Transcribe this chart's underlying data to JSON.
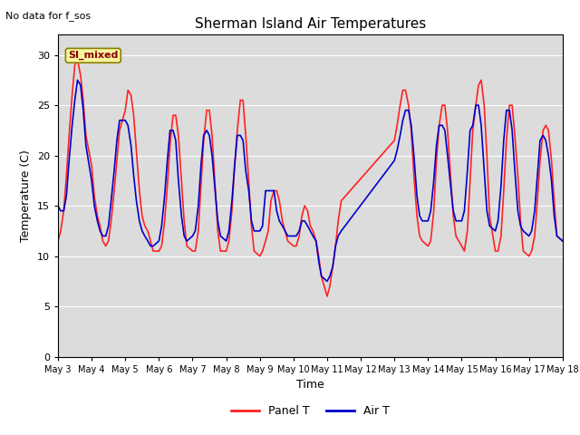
{
  "title": "Sherman Island Air Temperatures",
  "subtitle": "No data for f_sos",
  "xlabel": "Time",
  "ylabel": "Temperature (C)",
  "ylim": [
    0,
    32
  ],
  "yticks": [
    0,
    5,
    10,
    15,
    20,
    25,
    30
  ],
  "annotation": "SI_mixed",
  "bg_color": "#dcdcdc",
  "panel_t_color": "#ff2222",
  "air_t_color": "#0000cc",
  "legend_labels": [
    "Panel T",
    "Air T"
  ],
  "panel_t_x": [
    3.0,
    3.08,
    3.17,
    3.25,
    3.33,
    3.42,
    3.5,
    3.58,
    3.67,
    3.75,
    3.83,
    4.0,
    4.08,
    4.17,
    4.25,
    4.33,
    4.42,
    4.5,
    4.58,
    4.67,
    4.75,
    4.83,
    5.0,
    5.08,
    5.17,
    5.25,
    5.33,
    5.42,
    5.5,
    5.58,
    5.67,
    5.75,
    5.83,
    6.0,
    6.08,
    6.17,
    6.25,
    6.33,
    6.42,
    6.5,
    6.58,
    6.67,
    6.75,
    6.83,
    7.0,
    7.08,
    7.17,
    7.25,
    7.33,
    7.42,
    7.5,
    7.58,
    7.67,
    7.75,
    7.83,
    8.0,
    8.08,
    8.17,
    8.25,
    8.33,
    8.42,
    8.5,
    8.58,
    8.67,
    8.75,
    8.83,
    9.0,
    9.08,
    9.17,
    9.25,
    9.33,
    9.42,
    9.5,
    9.58,
    9.67,
    9.75,
    9.83,
    10.0,
    10.08,
    10.17,
    10.25,
    10.33,
    10.42,
    10.5,
    10.58,
    10.67,
    10.75,
    10.83,
    11.0,
    11.08,
    11.17,
    11.25,
    11.33,
    11.42,
    13.0,
    13.08,
    13.17,
    13.25,
    13.33,
    13.42,
    13.5,
    13.58,
    13.67,
    13.75,
    13.83,
    14.0,
    14.08,
    14.17,
    14.25,
    14.33,
    14.42,
    14.5,
    14.58,
    14.67,
    14.75,
    14.83,
    15.0,
    15.08,
    15.17,
    15.25,
    15.33,
    15.42,
    15.5,
    15.58,
    15.67,
    15.75,
    15.83,
    16.0,
    16.08,
    16.17,
    16.25,
    16.33,
    16.42,
    16.5,
    16.58,
    16.67,
    16.75,
    16.83,
    17.0,
    17.08,
    17.17,
    17.25,
    17.33,
    17.42,
    17.5,
    17.58,
    17.67,
    17.75,
    17.83,
    18.0
  ],
  "panel_t_y": [
    11.5,
    12.5,
    14.5,
    18.0,
    22.0,
    26.0,
    29.0,
    29.5,
    28.0,
    25.5,
    22.0,
    19.0,
    16.0,
    14.0,
    13.0,
    11.5,
    11.0,
    11.5,
    13.5,
    16.5,
    19.5,
    22.5,
    24.5,
    26.5,
    26.0,
    24.0,
    20.5,
    16.5,
    14.0,
    13.0,
    12.5,
    11.5,
    10.5,
    10.5,
    11.0,
    13.5,
    17.0,
    21.0,
    24.0,
    24.0,
    22.0,
    17.5,
    13.5,
    11.0,
    10.5,
    10.5,
    12.5,
    17.0,
    21.5,
    24.5,
    24.5,
    22.0,
    17.0,
    12.5,
    10.5,
    10.5,
    11.5,
    14.5,
    19.0,
    22.5,
    25.5,
    25.5,
    22.0,
    17.5,
    13.0,
    10.5,
    10.0,
    10.5,
    11.5,
    12.5,
    15.5,
    16.5,
    16.5,
    15.5,
    13.5,
    12.5,
    11.5,
    11.0,
    11.0,
    12.0,
    14.0,
    15.0,
    14.5,
    13.0,
    12.5,
    11.5,
    10.0,
    8.0,
    6.0,
    7.0,
    9.0,
    11.0,
    13.5,
    15.5,
    21.5,
    23.0,
    25.0,
    26.5,
    26.5,
    25.0,
    22.5,
    18.0,
    14.0,
    12.0,
    11.5,
    11.0,
    11.5,
    14.5,
    19.5,
    23.0,
    25.0,
    25.0,
    22.5,
    18.0,
    14.0,
    12.0,
    11.0,
    10.5,
    12.5,
    17.5,
    22.5,
    25.0,
    27.0,
    27.5,
    25.0,
    20.0,
    14.0,
    10.5,
    10.5,
    12.0,
    16.5,
    21.5,
    25.0,
    25.0,
    22.0,
    18.0,
    13.5,
    10.5,
    10.0,
    10.5,
    12.0,
    15.5,
    19.5,
    22.5,
    23.0,
    22.5,
    19.5,
    15.5,
    12.0,
    11.5
  ],
  "air_t_x": [
    3.0,
    3.08,
    3.17,
    3.25,
    3.33,
    3.42,
    3.5,
    3.58,
    3.67,
    3.75,
    3.83,
    4.0,
    4.08,
    4.17,
    4.25,
    4.33,
    4.42,
    4.5,
    4.58,
    4.67,
    4.75,
    4.83,
    5.0,
    5.08,
    5.17,
    5.25,
    5.33,
    5.42,
    5.5,
    5.58,
    5.67,
    5.75,
    5.83,
    6.0,
    6.08,
    6.17,
    6.25,
    6.33,
    6.42,
    6.5,
    6.58,
    6.67,
    6.75,
    6.83,
    7.0,
    7.08,
    7.17,
    7.25,
    7.33,
    7.42,
    7.5,
    7.58,
    7.67,
    7.75,
    7.83,
    8.0,
    8.08,
    8.17,
    8.25,
    8.33,
    8.42,
    8.5,
    8.58,
    8.67,
    8.75,
    8.83,
    9.0,
    9.08,
    9.17,
    9.25,
    9.33,
    9.42,
    9.5,
    9.58,
    9.67,
    9.75,
    9.83,
    10.0,
    10.08,
    10.17,
    10.25,
    10.33,
    10.42,
    10.5,
    10.58,
    10.67,
    10.75,
    10.83,
    11.0,
    11.08,
    11.17,
    11.25,
    11.33,
    11.42,
    13.0,
    13.08,
    13.17,
    13.25,
    13.33,
    13.42,
    13.5,
    13.58,
    13.67,
    13.75,
    13.83,
    14.0,
    14.08,
    14.17,
    14.25,
    14.33,
    14.42,
    14.5,
    14.58,
    14.67,
    14.75,
    14.83,
    15.0,
    15.08,
    15.17,
    15.25,
    15.33,
    15.42,
    15.5,
    15.58,
    15.67,
    15.75,
    15.83,
    16.0,
    16.08,
    16.17,
    16.25,
    16.33,
    16.42,
    16.5,
    16.58,
    16.67,
    16.75,
    16.83,
    17.0,
    17.08,
    17.17,
    17.25,
    17.33,
    17.42,
    17.5,
    17.58,
    17.67,
    17.75,
    17.83,
    18.0
  ],
  "air_t_y": [
    15.0,
    14.5,
    14.5,
    16.0,
    19.5,
    23.0,
    25.5,
    27.5,
    27.0,
    24.5,
    21.0,
    17.5,
    15.0,
    13.5,
    12.5,
    12.0,
    12.0,
    13.0,
    15.5,
    18.5,
    21.5,
    23.5,
    23.5,
    23.0,
    21.0,
    18.0,
    15.5,
    13.5,
    12.5,
    12.0,
    11.5,
    11.0,
    11.0,
    11.5,
    13.0,
    16.0,
    19.5,
    22.5,
    22.5,
    21.5,
    17.5,
    14.0,
    12.0,
    11.5,
    12.0,
    12.5,
    15.0,
    19.0,
    22.0,
    22.5,
    22.0,
    20.0,
    16.5,
    13.5,
    12.0,
    11.5,
    12.5,
    15.5,
    19.0,
    22.0,
    22.0,
    21.5,
    18.5,
    16.5,
    13.5,
    12.5,
    12.5,
    13.0,
    16.5,
    16.5,
    16.5,
    16.5,
    14.5,
    13.5,
    13.0,
    12.5,
    12.0,
    12.0,
    12.0,
    12.5,
    13.5,
    13.5,
    13.0,
    12.5,
    12.0,
    11.5,
    9.5,
    8.0,
    7.5,
    8.0,
    9.0,
    11.0,
    12.0,
    12.5,
    19.5,
    20.5,
    22.0,
    23.5,
    24.5,
    24.5,
    23.0,
    20.0,
    16.0,
    14.0,
    13.5,
    13.5,
    14.5,
    17.5,
    21.0,
    23.0,
    23.0,
    22.5,
    20.0,
    17.0,
    14.5,
    13.5,
    13.5,
    14.5,
    18.5,
    22.5,
    23.0,
    25.0,
    25.0,
    23.0,
    18.5,
    14.5,
    13.0,
    12.5,
    13.5,
    17.0,
    21.5,
    24.5,
    24.5,
    22.5,
    18.5,
    14.5,
    13.0,
    12.5,
    12.0,
    12.5,
    14.5,
    18.0,
    21.5,
    22.0,
    21.5,
    20.0,
    17.5,
    14.0,
    12.0,
    11.5
  ]
}
